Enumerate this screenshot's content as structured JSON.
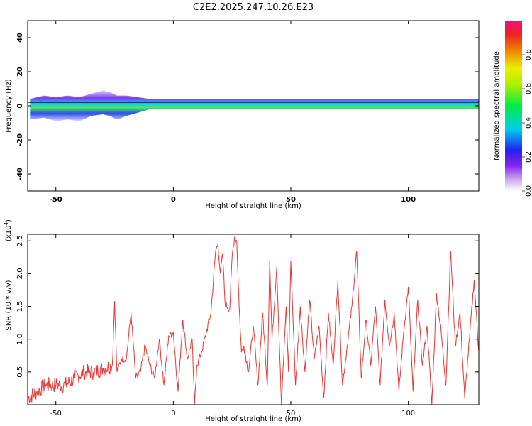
{
  "figure": {
    "title": "C2E2.2025.247.10.26.E23"
  },
  "chart_data": [
    {
      "type": "heatmap",
      "name": "spectrogram",
      "xlabel": "Height of straight line (km)",
      "ylabel": "Frequency (Hz)",
      "xlim": [
        -62,
        130
      ],
      "ylim": [
        -50,
        50
      ],
      "xticks": [
        -50,
        0,
        50,
        100
      ],
      "yticks": [
        -40,
        -20,
        0,
        20,
        40
      ],
      "band": [
        {
          "x": -61,
          "lo": -8,
          "hi": 4
        },
        {
          "x": -55,
          "lo": -7,
          "hi": 6
        },
        {
          "x": -50,
          "lo": -9,
          "hi": 5
        },
        {
          "x": -45,
          "lo": -8,
          "hi": 6
        },
        {
          "x": -40,
          "lo": -9,
          "hi": 5
        },
        {
          "x": -35,
          "lo": -6,
          "hi": 7
        },
        {
          "x": -30,
          "lo": -5,
          "hi": 9
        },
        {
          "x": -27,
          "lo": -6,
          "hi": 8
        },
        {
          "x": -24,
          "lo": -8,
          "hi": 6
        },
        {
          "x": -20,
          "lo": -6,
          "hi": 6
        },
        {
          "x": -15,
          "lo": -4,
          "hi": 5
        },
        {
          "x": -10,
          "lo": -2,
          "hi": 4
        },
        {
          "x": 0,
          "lo": -2,
          "hi": 4
        },
        {
          "x": 50,
          "lo": -2,
          "hi": 4
        },
        {
          "x": 100,
          "lo": -2,
          "hi": 4
        },
        {
          "x": 130,
          "lo": -2,
          "hi": 4
        }
      ],
      "colorbar": {
        "label": "Normalized spectral amplitude",
        "range": [
          0,
          1
        ],
        "ticks": [
          0.0,
          0.2,
          0.4,
          0.6,
          0.8
        ],
        "tick_labels": [
          "0.0",
          "0.2",
          "0.4",
          "0.6",
          "0.8"
        ]
      }
    },
    {
      "type": "line",
      "name": "snr",
      "xlabel": "Height of straight line (km)",
      "ylabel": "SNR (10 * v/v)",
      "yscale_label": "(x10",
      "yscale_exp": "4",
      "yscale_close": ")",
      "xlim": [
        -62,
        130
      ],
      "ylim": [
        0,
        2.6
      ],
      "xticks": [
        -50,
        0,
        50,
        100
      ],
      "yticks": [
        0.5,
        1.0,
        1.5,
        2.0,
        2.5
      ],
      "ytick_labels": [
        "0.5",
        "1.0",
        "1.5",
        "2.0",
        "2.5"
      ],
      "color": "#ee3333",
      "series": [
        {
          "name": "SNR",
          "x": [
            -62,
            -58,
            -54,
            -50,
            -46,
            -42,
            -38,
            -34,
            -30,
            -26,
            -25,
            -24,
            -22,
            -20,
            -18,
            -16,
            -14,
            -12,
            -10,
            -8,
            -6,
            -4,
            -2,
            0,
            2,
            4,
            6,
            8,
            9,
            10,
            12,
            14,
            16,
            18,
            19,
            20,
            21,
            22,
            24,
            25,
            26,
            27,
            28,
            29,
            30,
            32,
            34,
            36,
            38,
            40,
            41,
            42,
            44,
            46,
            48,
            49,
            50,
            52,
            54,
            56,
            58,
            60,
            62,
            64,
            66,
            68,
            70,
            72,
            74,
            76,
            78,
            80,
            82,
            84,
            86,
            88,
            90,
            92,
            94,
            96,
            98,
            100,
            102,
            104,
            106,
            108,
            110,
            112,
            114,
            116,
            118,
            120,
            122,
            124,
            126,
            128,
            130
          ],
          "y": [
            0.1,
            0.2,
            0.3,
            0.3,
            0.3,
            0.4,
            0.5,
            0.5,
            0.55,
            0.6,
            1.58,
            0.5,
            0.7,
            0.7,
            1.4,
            0.4,
            0.5,
            0.9,
            0.6,
            0.4,
            1.0,
            0.3,
            1.05,
            1.1,
            0.2,
            1.3,
            0.7,
            1.0,
            0.0,
            0.6,
            0.8,
            1.1,
            1.4,
            2.35,
            2.45,
            2.0,
            2.3,
            1.55,
            1.45,
            2.25,
            2.55,
            2.5,
            1.5,
            0.8,
            0.9,
            0.5,
            1.2,
            0.3,
            1.4,
            0.3,
            2.2,
            1.0,
            2.1,
            0.0,
            1.5,
            0.5,
            2.2,
            0.3,
            1.5,
            0.5,
            1.6,
            0.7,
            1.2,
            0.1,
            1.4,
            0.6,
            1.9,
            0.3,
            0.9,
            1.5,
            2.35,
            0.4,
            1.3,
            0.6,
            1.5,
            0.3,
            1.6,
            0.9,
            1.4,
            0.2,
            1.1,
            1.8,
            0.2,
            1.6,
            0.6,
            1.2,
            0.0,
            1.7,
            1.1,
            0.3,
            2.35,
            0.9,
            1.4,
            0.1,
            1.0,
            1.9,
            0.8
          ]
        }
      ]
    }
  ]
}
